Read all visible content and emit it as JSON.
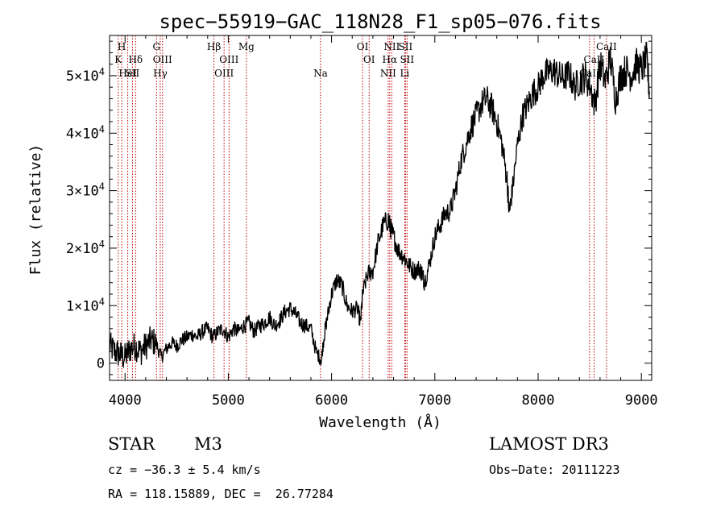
{
  "chart_data": {
    "type": "line",
    "title": "spec−55919−GAC_118N28_F1_sp05−076.fits",
    "xlabel": "Wavelength (Å)",
    "ylabel": "Flux (relative)",
    "xlim": [
      3850,
      9100
    ],
    "ylim": [
      -3000,
      57000
    ],
    "x_ticks": [
      {
        "value": 4000,
        "label": "4000"
      },
      {
        "value": 5000,
        "label": "5000"
      },
      {
        "value": 6000,
        "label": "6000"
      },
      {
        "value": 7000,
        "label": "7000"
      },
      {
        "value": 8000,
        "label": "8000"
      },
      {
        "value": 9000,
        "label": "9000"
      }
    ],
    "y_ticks": [
      {
        "value": 0,
        "label": "0",
        "exp": ""
      },
      {
        "value": 10000,
        "label": "1×10",
        "exp": "4"
      },
      {
        "value": 20000,
        "label": "2×10",
        "exp": "4"
      },
      {
        "value": 30000,
        "label": "3×10",
        "exp": "4"
      },
      {
        "value": 40000,
        "label": "4×10",
        "exp": "4"
      },
      {
        "value": 50000,
        "label": "5×10",
        "exp": "4"
      }
    ],
    "spectrum": {
      "name": "flux",
      "x": [
        3850,
        3900,
        3950,
        4000,
        4050,
        4100,
        4150,
        4200,
        4250,
        4300,
        4350,
        4400,
        4450,
        4500,
        4550,
        4600,
        4650,
        4700,
        4750,
        4800,
        4850,
        4900,
        4950,
        5000,
        5050,
        5100,
        5150,
        5200,
        5250,
        5300,
        5350,
        5400,
        5450,
        5500,
        5550,
        5600,
        5650,
        5700,
        5750,
        5800,
        5850,
        5900,
        5930,
        5960,
        6000,
        6050,
        6100,
        6150,
        6200,
        6250,
        6280,
        6300,
        6350,
        6400,
        6450,
        6500,
        6550,
        6570,
        6600,
        6650,
        6700,
        6750,
        6800,
        6850,
        6880,
        6900,
        6950,
        7000,
        7050,
        7100,
        7150,
        7200,
        7250,
        7300,
        7350,
        7400,
        7450,
        7500,
        7550,
        7600,
        7650,
        7700,
        7720,
        7750,
        7800,
        7850,
        7900,
        7950,
        8000,
        8050,
        8100,
        8150,
        8200,
        8250,
        8300,
        8350,
        8400,
        8450,
        8500,
        8550,
        8600,
        8650,
        8700,
        8750,
        8800,
        8850,
        8900,
        8950,
        9000,
        9050,
        9080
      ],
      "y": [
        3000,
        2000,
        1500,
        1000,
        2500,
        3000,
        2000,
        3000,
        4000,
        3500,
        1000,
        2500,
        3500,
        3000,
        4000,
        4500,
        5000,
        4500,
        5500,
        6000,
        4500,
        5500,
        6000,
        4500,
        6000,
        5500,
        6500,
        7000,
        5500,
        6500,
        7000,
        8000,
        6500,
        7500,
        9000,
        9500,
        8500,
        7000,
        6500,
        6000,
        2000,
        500,
        5000,
        8000,
        12000,
        14500,
        13500,
        10000,
        9000,
        9500,
        7000,
        12000,
        15500,
        16000,
        21000,
        24000,
        25000,
        23500,
        22000,
        19500,
        18500,
        17000,
        16000,
        16500,
        15500,
        14000,
        17500,
        22000,
        24000,
        26000,
        26500,
        30000,
        35000,
        38000,
        41000,
        43000,
        45000,
        46000,
        44500,
        42000,
        38000,
        32000,
        26000,
        30000,
        38000,
        43000,
        45000,
        47000,
        48000,
        50000,
        50500,
        51000,
        50000,
        49500,
        50500,
        48000,
        49000,
        50000,
        48500,
        45000,
        52000,
        49000,
        53000,
        46000,
        50000,
        51000,
        50000,
        52000,
        51000,
        53000,
        47000
      ],
      "color": "#000000"
    },
    "lines": [
      {
        "wl": 3934,
        "labels": [
          {
            "text": "K",
            "row": 2
          }
        ]
      },
      {
        "wl": 3968,
        "labels": [
          {
            "text": "H",
            "row": 1
          }
        ]
      },
      {
        "wl": 4026,
        "labels": [
          {
            "text": "HeI",
            "row": 3
          }
        ]
      },
      {
        "wl": 4072,
        "labels": [
          {
            "text": "SII",
            "row": 3
          }
        ]
      },
      {
        "wl": 4102,
        "labels": [
          {
            "text": "Hδ",
            "row": 2
          }
        ]
      },
      {
        "wl": 4305,
        "labels": [
          {
            "text": "G",
            "row": 1
          }
        ]
      },
      {
        "wl": 4341,
        "labels": [
          {
            "text": "Hγ",
            "row": 3
          }
        ]
      },
      {
        "wl": 4363,
        "labels": [
          {
            "text": "OIII",
            "row": 2
          }
        ]
      },
      {
        "wl": 4861,
        "labels": [
          {
            "text": "Hβ",
            "row": 1
          }
        ]
      },
      {
        "wl": 4959,
        "labels": [
          {
            "text": "OIII",
            "row": 3
          }
        ]
      },
      {
        "wl": 5007,
        "labels": [
          {
            "text": "OIII",
            "row": 2
          }
        ]
      },
      {
        "wl": 5175,
        "labels": [
          {
            "text": "Mg",
            "row": 1
          }
        ]
      },
      {
        "wl": 5893,
        "labels": [
          {
            "text": "Na",
            "row": 3
          }
        ]
      },
      {
        "wl": 6300,
        "labels": [
          {
            "text": "OI",
            "row": 1
          }
        ]
      },
      {
        "wl": 6364,
        "labels": [
          {
            "text": "OI",
            "row": 2
          }
        ]
      },
      {
        "wl": 6548,
        "labels": [
          {
            "text": "NII",
            "row": 3
          }
        ]
      },
      {
        "wl": 6563,
        "labels": [
          {
            "text": "Hα",
            "row": 2
          }
        ]
      },
      {
        "wl": 6583,
        "labels": [
          {
            "text": "NII",
            "row": 1
          }
        ]
      },
      {
        "wl": 6708,
        "labels": [
          {
            "text": "Li",
            "row": 3
          }
        ]
      },
      {
        "wl": 6716,
        "labels": [
          {
            "text": "SII",
            "row": 1
          }
        ]
      },
      {
        "wl": 6731,
        "labels": [
          {
            "text": "SII",
            "row": 2
          }
        ]
      },
      {
        "wl": 8498,
        "labels": [
          {
            "text": "CaII",
            "row": 3
          }
        ]
      },
      {
        "wl": 8542,
        "labels": [
          {
            "text": "CaII",
            "row": 2
          }
        ]
      },
      {
        "wl": 8662,
        "labels": [
          {
            "text": "CaII",
            "row": 1
          }
        ]
      }
    ],
    "line_color": "#c00000",
    "grid": false
  },
  "info": {
    "object_class": "STAR",
    "subclass": "M3",
    "survey": "LAMOST DR3",
    "cz": "cz = −36.3 ± 5.4 km/s",
    "obs_date": "Obs−Date: 20111223",
    "coords": "RA = 118.15889, DEC =  26.77284"
  }
}
